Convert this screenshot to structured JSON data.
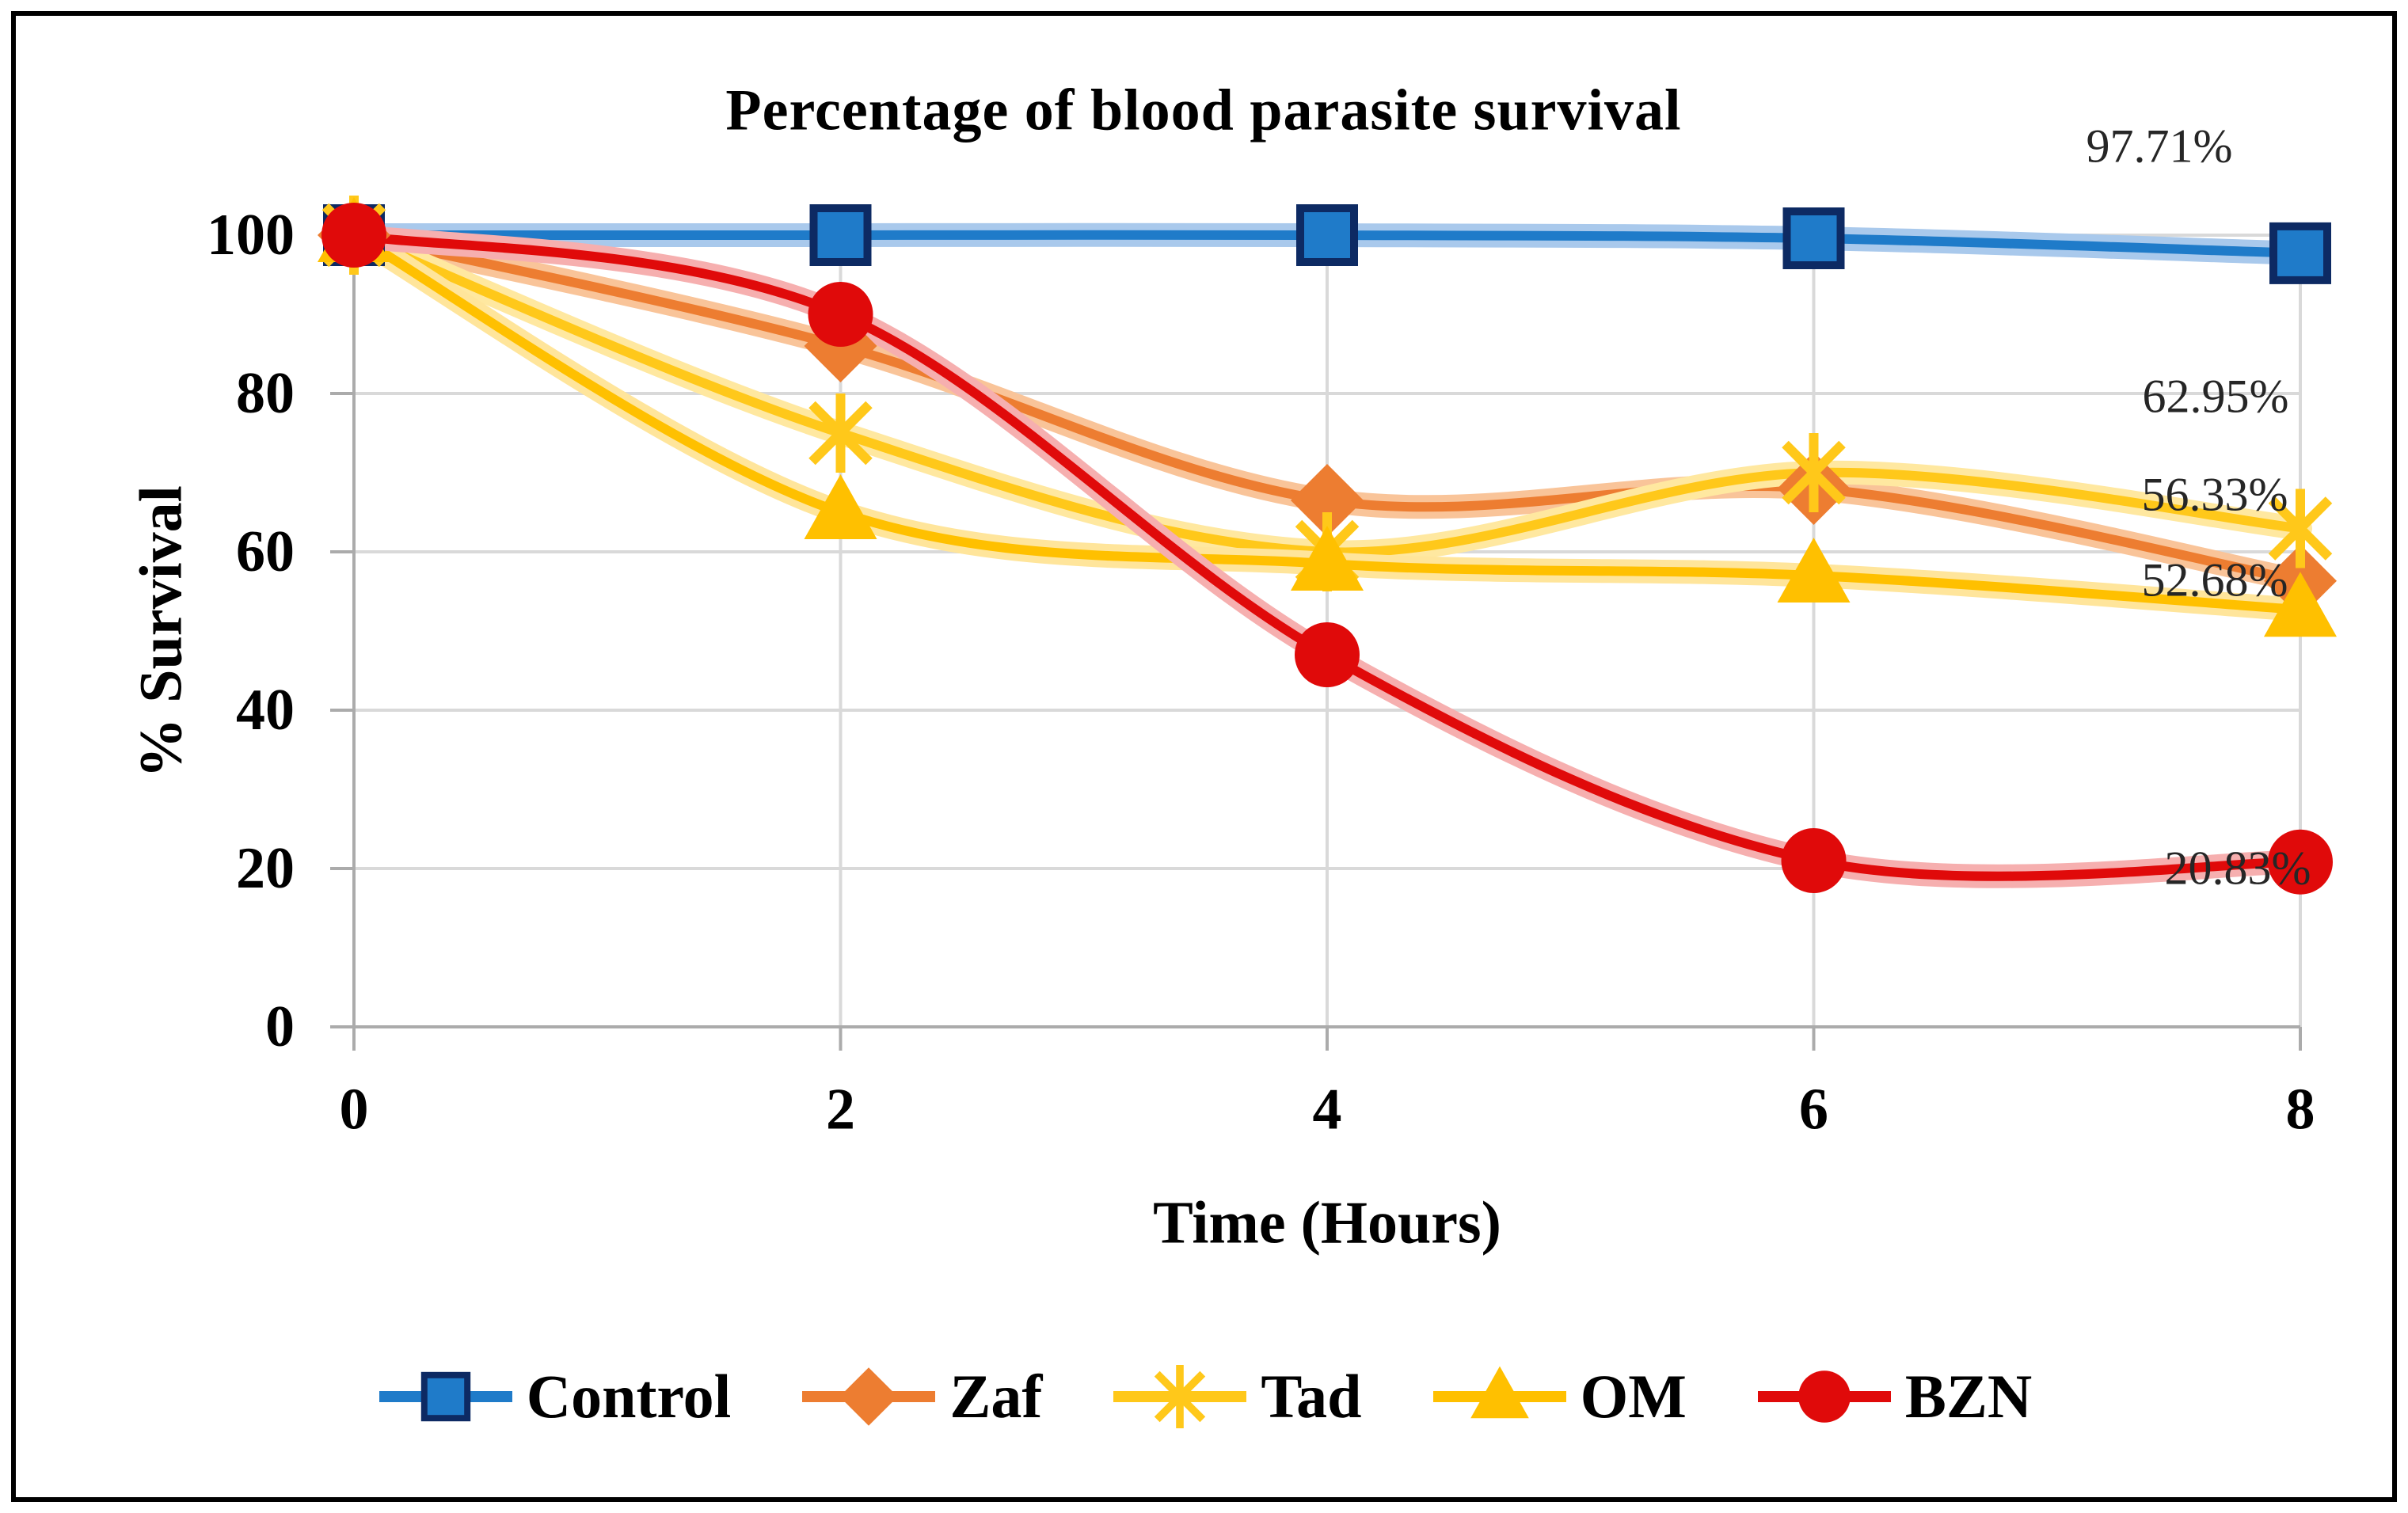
{
  "title": "Percentage of blood parasite survival",
  "x_axis": {
    "label": "Time (Hours)",
    "ticks": [
      "0",
      "2",
      "4",
      "6",
      "8"
    ]
  },
  "y_axis": {
    "label": "% Survival",
    "ticks": [
      "0",
      "20",
      "40",
      "60",
      "80",
      "100"
    ]
  },
  "colors": {
    "background": "#FFFFFF",
    "border": "#000000",
    "gridline": "#D9D9D9",
    "axis_line": "#ABABAB",
    "label_text": "#262626"
  },
  "chart_data": {
    "type": "line",
    "title": "Percentage of blood parasite survival",
    "xlabel": "Time (Hours)",
    "ylabel": "% Survival",
    "x": [
      0,
      2,
      4,
      6,
      8
    ],
    "xlim": [
      0,
      8
    ],
    "ylim": [
      0,
      100
    ],
    "grid": true,
    "smooth_lines": true,
    "legend_position": "bottom",
    "series": [
      {
        "name": "Control",
        "marker": "square",
        "color": "#1F7BC9",
        "halo": "#A9C9EC",
        "marker_stroke": "#0D2A63",
        "values": [
          100,
          100,
          100,
          99.6,
          97.71
        ],
        "end_label": "97.71%"
      },
      {
        "name": "Zaf",
        "marker": "diamond",
        "color": "#ED7D31",
        "halo": "#F9C499",
        "values": [
          100,
          86,
          66.5,
          68,
          56.33
        ],
        "end_label": "56.33%"
      },
      {
        "name": "Tad",
        "marker": "asterisk",
        "color": "#FFC81A",
        "halo": "#FFE8A0",
        "values": [
          100,
          75,
          60,
          70,
          62.95
        ],
        "end_label": "62.95%"
      },
      {
        "name": "OM",
        "marker": "triangle",
        "color": "#FFC000",
        "halo": "#FFE59B",
        "values": [
          100,
          65,
          58.5,
          57,
          52.68
        ],
        "end_label": "52.68%"
      },
      {
        "name": "BZN",
        "marker": "circle",
        "color": "#E00A0A",
        "halo": "#F6AFAF",
        "values": [
          100,
          90,
          47,
          21,
          20.83
        ],
        "end_label": "20.83%"
      }
    ]
  }
}
